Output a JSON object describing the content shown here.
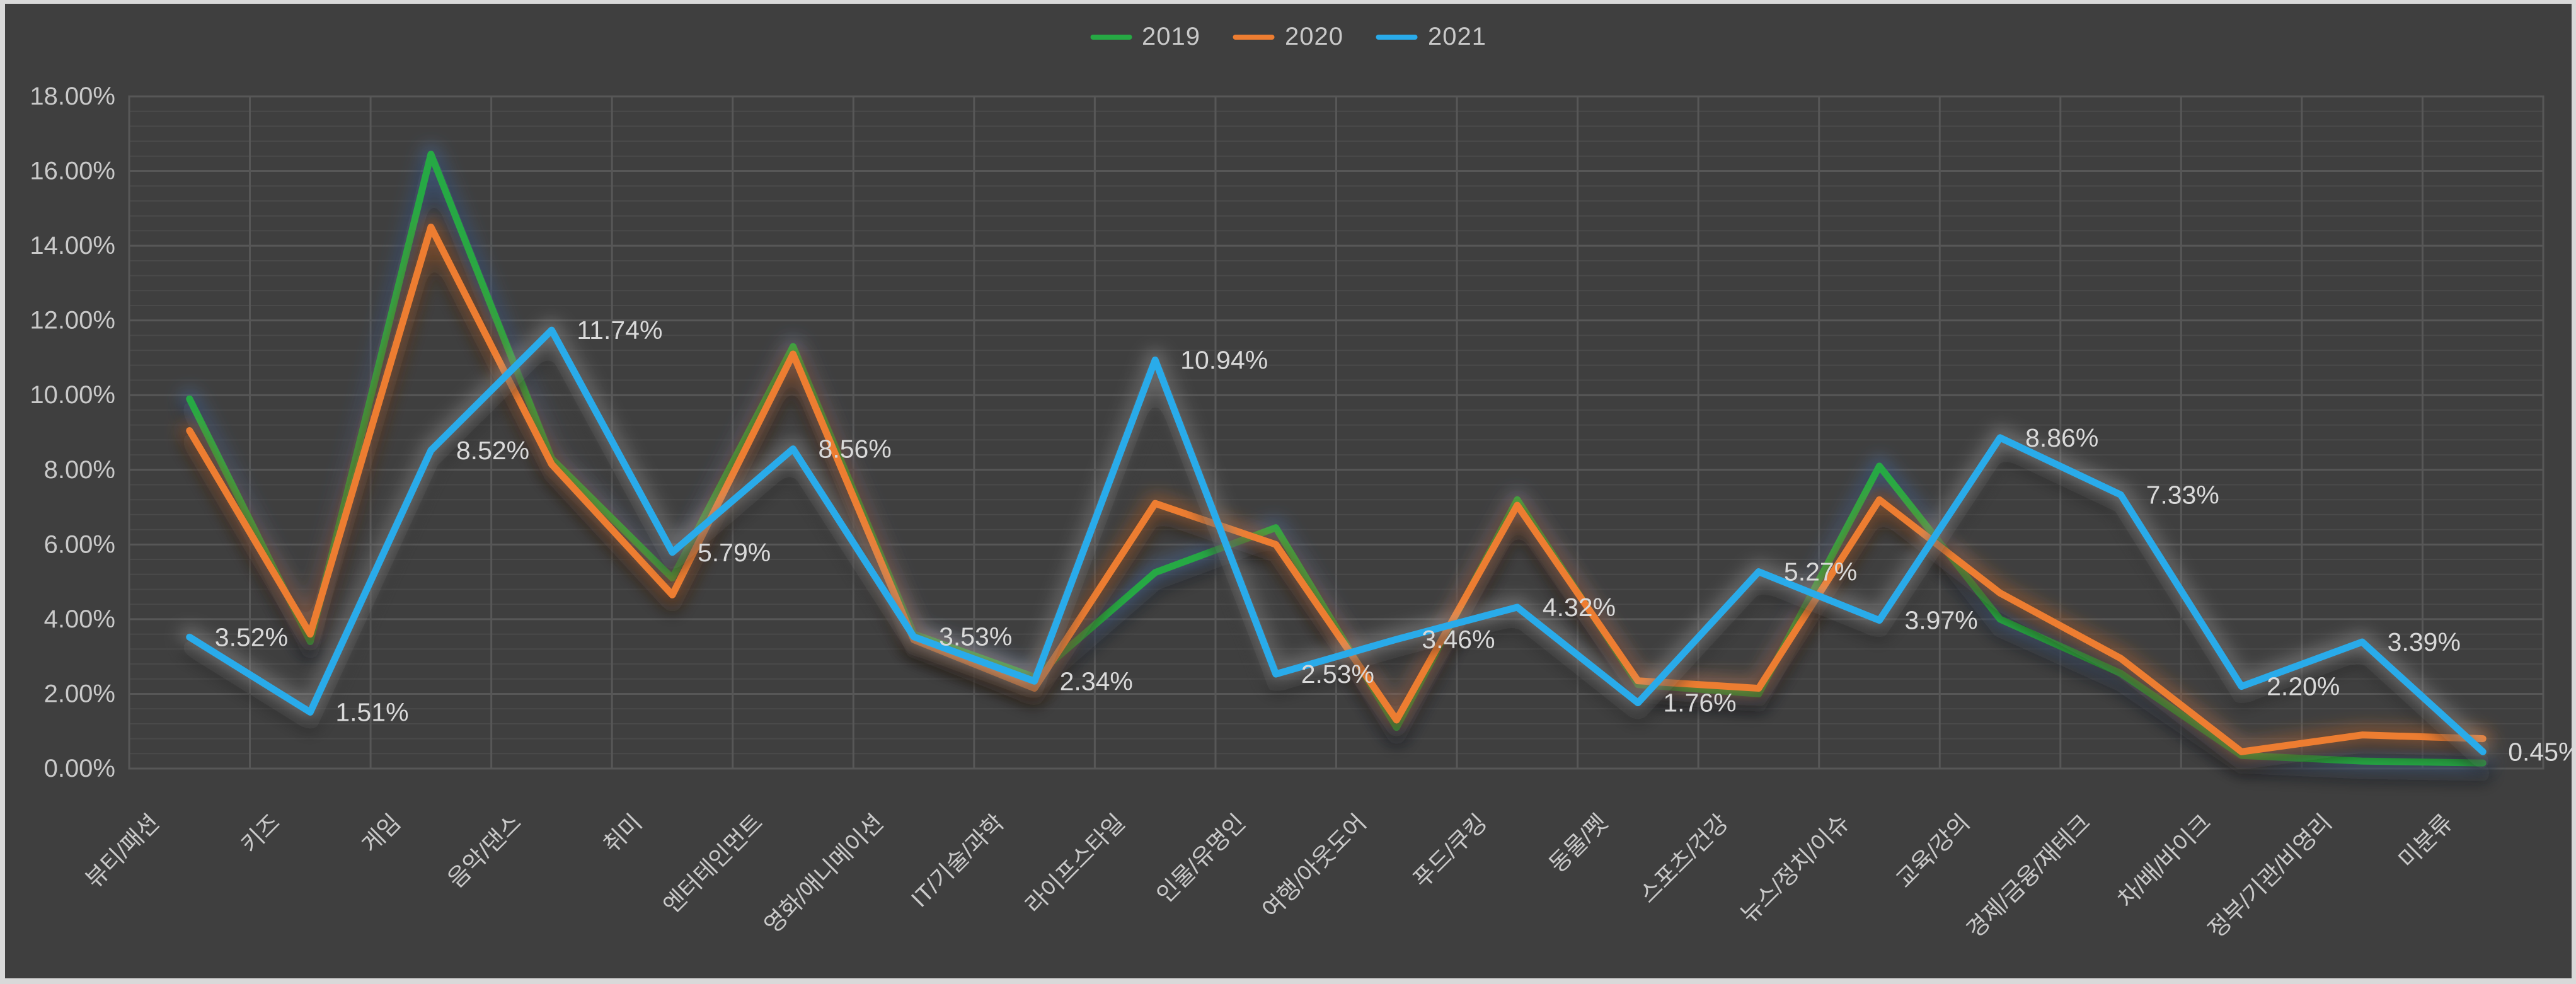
{
  "frame": {
    "background": "#3F3F3F",
    "border_color": "#D9D9D9"
  },
  "legend": {
    "position": "top-center",
    "items": [
      {
        "label": "2019",
        "color": "#26A944"
      },
      {
        "label": "2020",
        "color": "#ED7D31"
      },
      {
        "label": "2021",
        "color": "#29ABEA"
      }
    ]
  },
  "axes": {
    "y_ticks": [
      "18.00%",
      "16.00%",
      "14.00%",
      "12.00%",
      "10.00%",
      "8.00%",
      "6.00%",
      "4.00%",
      "2.00%",
      "0.00%"
    ],
    "y_major_unit": 2,
    "y_minor_unit": 0.4,
    "tick_color": "#C9C9C9",
    "grid_major_color": "#575757",
    "grid_minor_color": "#4A4A4A"
  },
  "chart_data": {
    "type": "line",
    "title": "",
    "xlabel": "",
    "ylabel": "",
    "ylim": [
      0,
      18
    ],
    "grid": {
      "horizontal_major": true,
      "horizontal_minor": true,
      "vertical_major": true
    },
    "legend_position": "top",
    "categories": [
      "뷰티/패션",
      "키즈",
      "게임",
      "음악/댄스",
      "취미",
      "엔터테인먼트",
      "영화/애니메이션",
      "IT/기술/과학",
      "라이프스타일",
      "인물/유명인",
      "여행/아웃도어",
      "푸드/쿠킹",
      "동물/펫",
      "스포츠/건강",
      "뉴스/정치/이슈",
      "교육/강의",
      "경제/금융/재테크",
      "차/배/바이크",
      "정부/기관/비영리",
      "미분류"
    ],
    "series": [
      {
        "name": "2019",
        "color": "#26A944",
        "glow_color": "rgba(90,140,210,0.38)",
        "values": [
          9.9,
          3.4,
          16.45,
          8.3,
          5.1,
          11.3,
          3.6,
          2.45,
          5.25,
          6.45,
          1.1,
          7.2,
          2.25,
          2.0,
          8.1,
          4.0,
          2.55,
          0.35,
          0.2,
          0.15
        ],
        "values_are_estimated": true
      },
      {
        "name": "2020",
        "color": "#ED7D31",
        "glow_color": "rgba(237,125,49,0.38)",
        "values": [
          9.05,
          3.6,
          14.5,
          8.15,
          4.65,
          11.1,
          3.45,
          2.15,
          7.1,
          6.0,
          1.3,
          7.05,
          2.35,
          2.15,
          7.2,
          4.7,
          2.95,
          0.45,
          0.9,
          0.8
        ],
        "values_are_estimated": true
      },
      {
        "name": "2021",
        "color": "#29ABEA",
        "glow_color": "rgba(215,215,215,0.35)",
        "values": [
          3.52,
          1.51,
          8.52,
          11.74,
          5.79,
          8.56,
          3.53,
          2.34,
          10.94,
          2.53,
          3.46,
          4.32,
          1.76,
          5.27,
          3.97,
          8.86,
          7.33,
          2.2,
          3.39,
          0.45
        ],
        "data_labels": [
          "3.52%",
          "1.51%",
          "8.52%",
          "11.74%",
          "5.79%",
          "8.56%",
          "3.53%",
          "2.34%",
          "10.94%",
          "2.53%",
          "3.46%",
          "4.32%",
          "1.76%",
          "5.27%",
          "3.97%",
          "8.86%",
          "7.33%",
          "2.20%",
          "3.39%",
          "0.45%"
        ],
        "data_label_color": "#D9D9D9"
      }
    ]
  }
}
